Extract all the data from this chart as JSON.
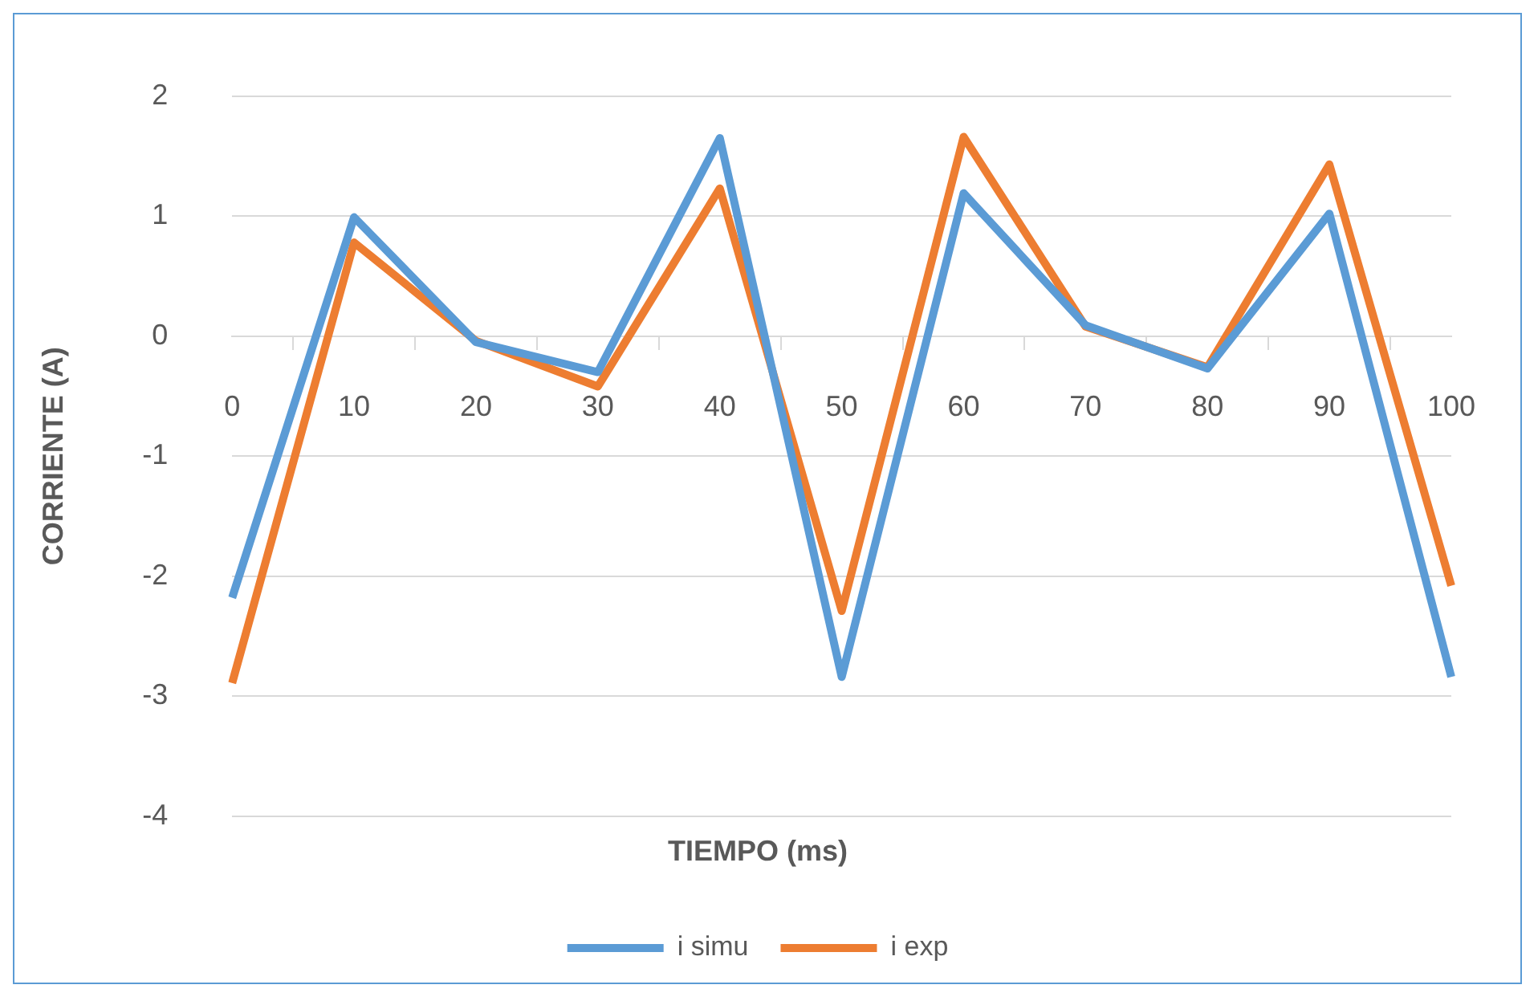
{
  "chart_data": {
    "type": "line",
    "xlabel": "TIEMPO (ms)",
    "ylabel": "CORRIENTE (A)",
    "categories": [
      "0",
      "10",
      "20",
      "30",
      "40",
      "50",
      "60",
      "70",
      "80",
      "90",
      "100"
    ],
    "series": [
      {
        "name": "i simu",
        "color": "#5b9bd5",
        "values": [
          -2.18,
          0.99,
          -0.05,
          -0.3,
          1.65,
          -2.84,
          1.19,
          0.09,
          -0.27,
          1.02,
          -2.84
        ]
      },
      {
        "name": "i exp",
        "color": "#ed7d31",
        "values": [
          -2.89,
          0.78,
          -0.04,
          -0.42,
          1.23,
          -2.29,
          1.66,
          0.08,
          -0.26,
          1.43,
          -2.08
        ]
      }
    ],
    "ylim": [
      -4,
      2
    ],
    "yticks": [
      -4,
      -3,
      -2,
      -1,
      0,
      1,
      2
    ],
    "grid": "y",
    "legend": "bottom",
    "marker": "none",
    "line_style": "solid"
  }
}
